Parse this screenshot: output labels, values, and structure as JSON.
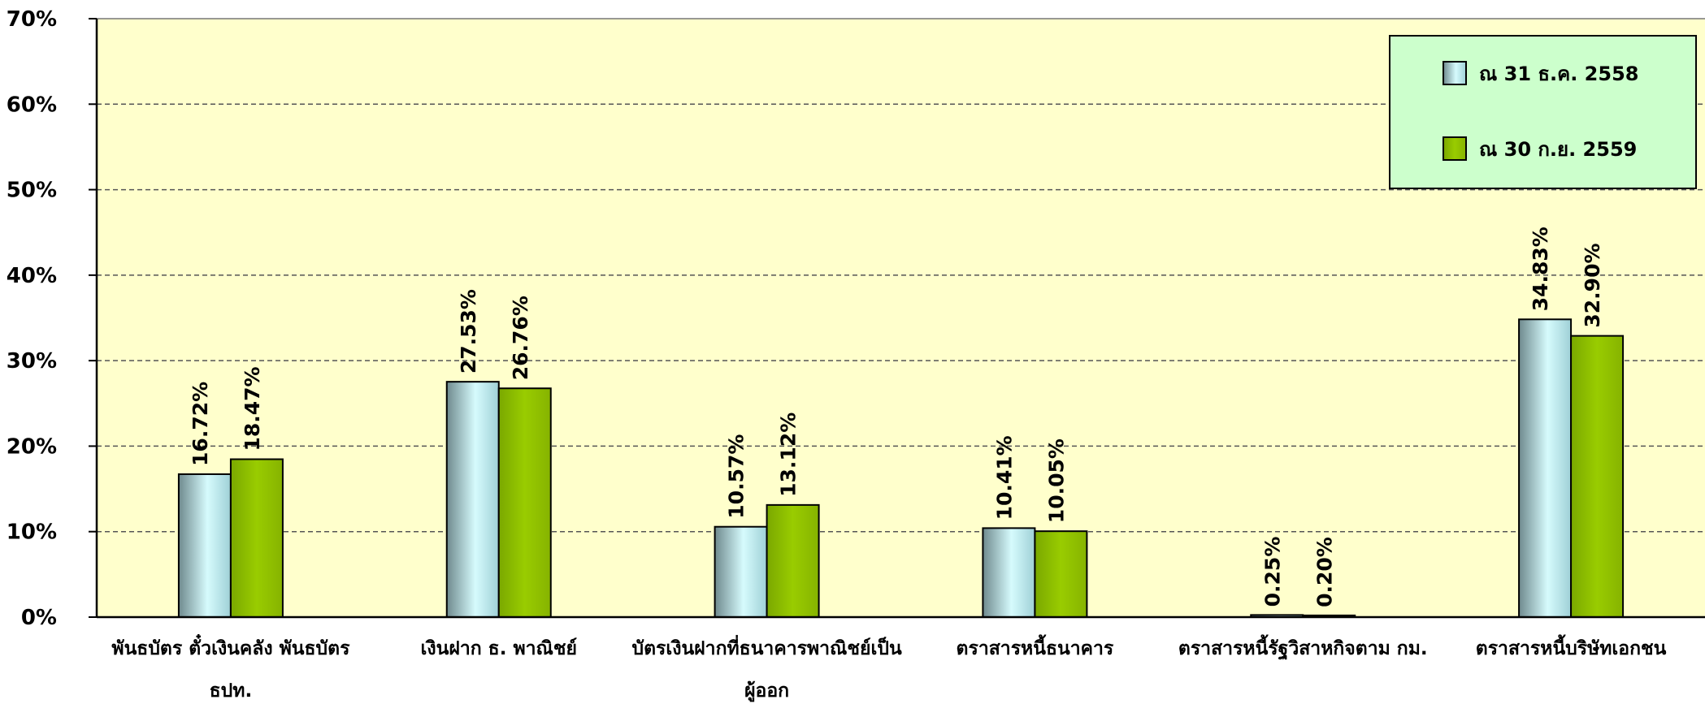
{
  "chart_data": {
    "type": "bar",
    "categories": [
      [
        "พันธบัตร ตั๋วเงินคลัง พันธบัตร",
        "ธปท."
      ],
      [
        "เงินฝาก ธ. พาณิชย์"
      ],
      [
        "บัตรเงินฝากที่ธนาคารพาณิชย์เป็น",
        "ผู้ออก"
      ],
      [
        "ตราสารหนี้ธนาคาร"
      ],
      [
        "ตราสารหนี้รัฐวิสาหกิจตาม กม."
      ],
      [
        "ตราสารหนี้บริษัทเอกชน"
      ]
    ],
    "series": [
      {
        "name": "ณ 31 ธ.ค. 2558",
        "values": [
          16.72,
          27.53,
          10.57,
          10.41,
          0.25,
          34.83
        ],
        "labels": [
          "16.72%",
          "27.53%",
          "10.57%",
          "10.41%",
          "0.25%",
          "34.83%"
        ],
        "color": "#bff2f6"
      },
      {
        "name": "ณ 30 ก.ย. 2559",
        "values": [
          18.47,
          26.76,
          13.12,
          10.05,
          0.2,
          32.9
        ],
        "labels": [
          "18.47%",
          "26.76%",
          "13.12%",
          "10.05%",
          "0.20%",
          "32.90%"
        ],
        "color": "#8dbf00"
      }
    ],
    "y_ticks": [
      "0%",
      "10%",
      "20%",
      "30%",
      "40%",
      "50%",
      "60%",
      "70%"
    ],
    "ylim": [
      0,
      70
    ],
    "grid": true,
    "legend_position": "top-right",
    "plot_background": "#ffffcc",
    "legend_background": "#ccffcc"
  }
}
